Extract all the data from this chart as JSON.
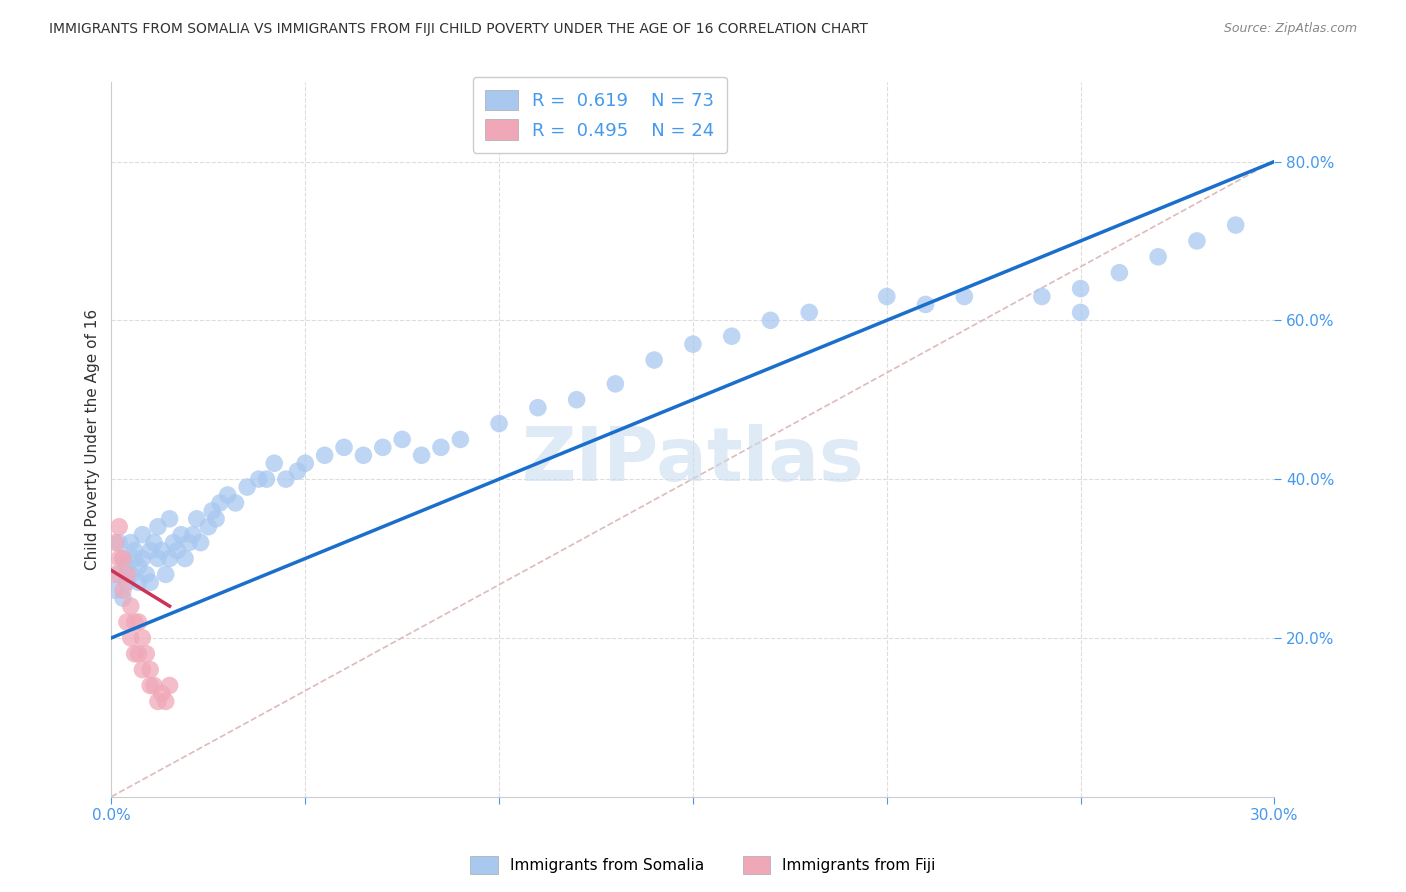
{
  "title": "IMMIGRANTS FROM SOMALIA VS IMMIGRANTS FROM FIJI CHILD POVERTY UNDER THE AGE OF 16 CORRELATION CHART",
  "source": "Source: ZipAtlas.com",
  "ylabel": "Child Poverty Under the Age of 16",
  "xlim": [
    0.0,
    0.3
  ],
  "ylim": [
    0.0,
    0.9
  ],
  "xticks": [
    0.0,
    0.05,
    0.1,
    0.15,
    0.2,
    0.25,
    0.3
  ],
  "xticklabels": [
    "0.0%",
    "",
    "",
    "",
    "",
    "",
    "30.0%"
  ],
  "yticks": [
    0.2,
    0.4,
    0.6,
    0.8
  ],
  "yticklabels": [
    "20.0%",
    "40.0%",
    "60.0%",
    "80.0%"
  ],
  "somalia_color": "#a8c8f0",
  "fiji_color": "#f0a8b8",
  "somalia_line_color": "#1a6fcc",
  "fiji_line_color": "#cc3355",
  "ref_line_color": "#ddbbbb",
  "legend_label_somalia": "Immigrants from Somalia",
  "legend_label_fiji": "Immigrants from Fiji",
  "somalia_slope": 2.0,
  "somalia_intercept": 0.2,
  "fiji_slope": -3.0,
  "fiji_intercept": 0.285,
  "ref_slope": 2.67,
  "ref_intercept": 0.0,
  "watermark": "ZIPatlas",
  "background_color": "#ffffff",
  "grid_color": "#dddddd",
  "title_color": "#333333",
  "axis_color": "#4499ee",
  "somalia_x": [
    0.001,
    0.002,
    0.002,
    0.003,
    0.003,
    0.004,
    0.004,
    0.005,
    0.005,
    0.006,
    0.006,
    0.007,
    0.007,
    0.008,
    0.008,
    0.009,
    0.01,
    0.01,
    0.011,
    0.012,
    0.012,
    0.013,
    0.014,
    0.015,
    0.015,
    0.016,
    0.017,
    0.018,
    0.019,
    0.02,
    0.021,
    0.022,
    0.023,
    0.025,
    0.026,
    0.027,
    0.028,
    0.03,
    0.032,
    0.035,
    0.038,
    0.04,
    0.042,
    0.045,
    0.048,
    0.05,
    0.055,
    0.06,
    0.065,
    0.07,
    0.075,
    0.08,
    0.085,
    0.09,
    0.1,
    0.11,
    0.12,
    0.13,
    0.14,
    0.15,
    0.16,
    0.17,
    0.18,
    0.2,
    0.21,
    0.22,
    0.24,
    0.25,
    0.26,
    0.27,
    0.28,
    0.29,
    0.25
  ],
  "somalia_y": [
    0.26,
    0.28,
    0.32,
    0.25,
    0.3,
    0.27,
    0.29,
    0.28,
    0.32,
    0.3,
    0.31,
    0.29,
    0.27,
    0.3,
    0.33,
    0.28,
    0.27,
    0.31,
    0.32,
    0.3,
    0.34,
    0.31,
    0.28,
    0.3,
    0.35,
    0.32,
    0.31,
    0.33,
    0.3,
    0.32,
    0.33,
    0.35,
    0.32,
    0.34,
    0.36,
    0.35,
    0.37,
    0.38,
    0.37,
    0.39,
    0.4,
    0.4,
    0.42,
    0.4,
    0.41,
    0.42,
    0.43,
    0.44,
    0.43,
    0.44,
    0.45,
    0.43,
    0.44,
    0.45,
    0.47,
    0.49,
    0.5,
    0.52,
    0.55,
    0.57,
    0.58,
    0.6,
    0.61,
    0.63,
    0.62,
    0.63,
    0.63,
    0.64,
    0.66,
    0.68,
    0.7,
    0.72,
    0.61
  ],
  "fiji_x": [
    0.001,
    0.001,
    0.002,
    0.002,
    0.003,
    0.003,
    0.004,
    0.004,
    0.005,
    0.005,
    0.006,
    0.006,
    0.007,
    0.007,
    0.008,
    0.008,
    0.009,
    0.01,
    0.01,
    0.011,
    0.012,
    0.013,
    0.014,
    0.015
  ],
  "fiji_y": [
    0.28,
    0.32,
    0.3,
    0.34,
    0.3,
    0.26,
    0.28,
    0.22,
    0.24,
    0.2,
    0.22,
    0.18,
    0.22,
    0.18,
    0.2,
    0.16,
    0.18,
    0.16,
    0.14,
    0.14,
    0.12,
    0.13,
    0.12,
    0.14
  ]
}
